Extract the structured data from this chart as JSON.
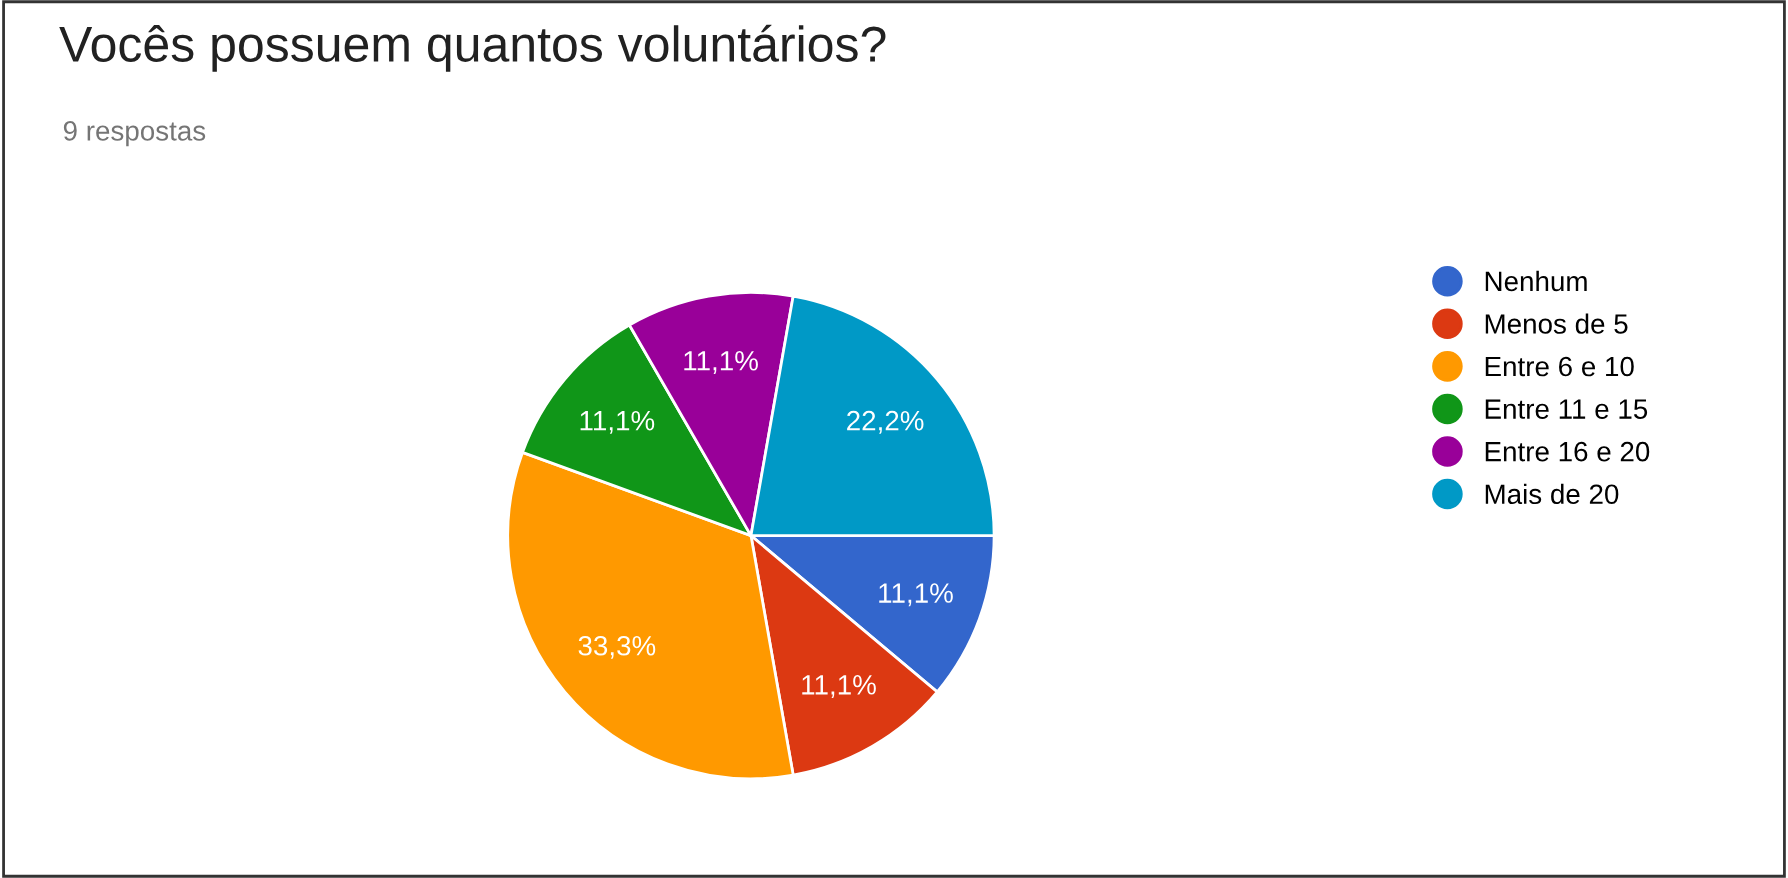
{
  "chart_data": {
    "type": "pie",
    "title": "Vocês possuem quantos voluntários?",
    "subtitle": "9 respostas",
    "categories": [
      "Nenhum",
      "Menos de 5",
      "Entre 6 e 10",
      "Entre 11 e 15",
      "Entre 16 e 20",
      "Mais de 20"
    ],
    "values": [
      11.1,
      11.1,
      33.3,
      11.1,
      11.1,
      22.2
    ],
    "value_labels": [
      "11,1%",
      "11,1%",
      "33,3%",
      "11,1%",
      "11,1%",
      "22,2%"
    ],
    "colors": [
      "#3366cc",
      "#dc3912",
      "#ff9900",
      "#109618",
      "#990099",
      "#0099c6"
    ],
    "legend": "right"
  }
}
